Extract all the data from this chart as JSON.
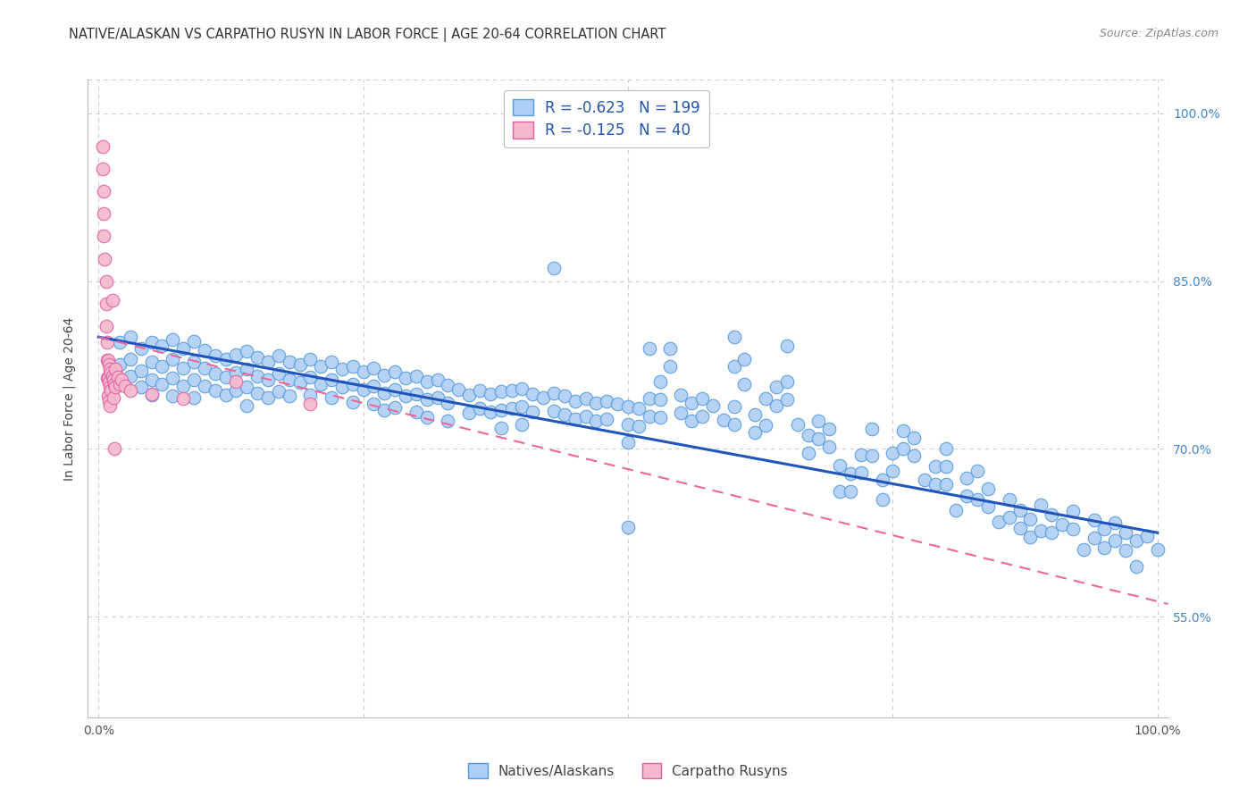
{
  "title": "NATIVE/ALASKAN VS CARPATHO RUSYN IN LABOR FORCE | AGE 20-64 CORRELATION CHART",
  "source": "Source: ZipAtlas.com",
  "ylabel": "In Labor Force | Age 20-64",
  "xlim": [
    -0.01,
    1.01
  ],
  "ylim": [
    0.46,
    1.03
  ],
  "ytick_labels_right": [
    "55.0%",
    "70.0%",
    "85.0%",
    "100.0%"
  ],
  "ytick_vals_right": [
    0.55,
    0.7,
    0.85,
    1.0
  ],
  "blue_R": "-0.623",
  "blue_N": "199",
  "pink_R": "-0.125",
  "pink_N": "40",
  "blue_color": "#aecff5",
  "blue_edge_color": "#5599dd",
  "pink_color": "#f5b8cc",
  "pink_edge_color": "#e060a0",
  "blue_line_color": "#2255bb",
  "pink_line_color": "#ee6699",
  "background_color": "#ffffff",
  "grid_color": "#cccccc",
  "blue_line_y_start": 0.8,
  "blue_line_y_end": 0.625,
  "pink_line_y_start": 0.8,
  "pink_line_y_end": 0.748,
  "pink_line_x_end": 0.22,
  "blue_scatter": [
    [
      0.02,
      0.795
    ],
    [
      0.02,
      0.775
    ],
    [
      0.03,
      0.8
    ],
    [
      0.03,
      0.78
    ],
    [
      0.03,
      0.765
    ],
    [
      0.04,
      0.79
    ],
    [
      0.04,
      0.77
    ],
    [
      0.04,
      0.755
    ],
    [
      0.05,
      0.795
    ],
    [
      0.05,
      0.778
    ],
    [
      0.05,
      0.762
    ],
    [
      0.05,
      0.748
    ],
    [
      0.06,
      0.792
    ],
    [
      0.06,
      0.774
    ],
    [
      0.06,
      0.758
    ],
    [
      0.07,
      0.798
    ],
    [
      0.07,
      0.78
    ],
    [
      0.07,
      0.763
    ],
    [
      0.07,
      0.747
    ],
    [
      0.08,
      0.79
    ],
    [
      0.08,
      0.772
    ],
    [
      0.08,
      0.756
    ],
    [
      0.09,
      0.796
    ],
    [
      0.09,
      0.778
    ],
    [
      0.09,
      0.762
    ],
    [
      0.09,
      0.746
    ],
    [
      0.1,
      0.788
    ],
    [
      0.1,
      0.772
    ],
    [
      0.1,
      0.756
    ],
    [
      0.11,
      0.783
    ],
    [
      0.11,
      0.767
    ],
    [
      0.11,
      0.752
    ],
    [
      0.12,
      0.78
    ],
    [
      0.12,
      0.764
    ],
    [
      0.12,
      0.748
    ],
    [
      0.13,
      0.784
    ],
    [
      0.13,
      0.768
    ],
    [
      0.13,
      0.752
    ],
    [
      0.14,
      0.787
    ],
    [
      0.14,
      0.771
    ],
    [
      0.14,
      0.755
    ],
    [
      0.14,
      0.739
    ],
    [
      0.15,
      0.782
    ],
    [
      0.15,
      0.765
    ],
    [
      0.15,
      0.75
    ],
    [
      0.16,
      0.778
    ],
    [
      0.16,
      0.762
    ],
    [
      0.16,
      0.746
    ],
    [
      0.17,
      0.783
    ],
    [
      0.17,
      0.767
    ],
    [
      0.17,
      0.751
    ],
    [
      0.18,
      0.778
    ],
    [
      0.18,
      0.762
    ],
    [
      0.18,
      0.747
    ],
    [
      0.19,
      0.775
    ],
    [
      0.19,
      0.759
    ],
    [
      0.2,
      0.78
    ],
    [
      0.2,
      0.764
    ],
    [
      0.2,
      0.748
    ],
    [
      0.21,
      0.774
    ],
    [
      0.21,
      0.758
    ],
    [
      0.22,
      0.778
    ],
    [
      0.22,
      0.762
    ],
    [
      0.22,
      0.746
    ],
    [
      0.23,
      0.771
    ],
    [
      0.23,
      0.755
    ],
    [
      0.24,
      0.774
    ],
    [
      0.24,
      0.758
    ],
    [
      0.24,
      0.742
    ],
    [
      0.25,
      0.769
    ],
    [
      0.25,
      0.753
    ],
    [
      0.26,
      0.772
    ],
    [
      0.26,
      0.756
    ],
    [
      0.26,
      0.74
    ],
    [
      0.27,
      0.766
    ],
    [
      0.27,
      0.75
    ],
    [
      0.27,
      0.735
    ],
    [
      0.28,
      0.769
    ],
    [
      0.28,
      0.753
    ],
    [
      0.28,
      0.737
    ],
    [
      0.29,
      0.763
    ],
    [
      0.29,
      0.747
    ],
    [
      0.3,
      0.765
    ],
    [
      0.3,
      0.749
    ],
    [
      0.3,
      0.733
    ],
    [
      0.31,
      0.76
    ],
    [
      0.31,
      0.744
    ],
    [
      0.31,
      0.728
    ],
    [
      0.32,
      0.762
    ],
    [
      0.32,
      0.746
    ],
    [
      0.33,
      0.757
    ],
    [
      0.33,
      0.741
    ],
    [
      0.33,
      0.725
    ],
    [
      0.34,
      0.753
    ],
    [
      0.35,
      0.748
    ],
    [
      0.35,
      0.732
    ],
    [
      0.36,
      0.752
    ],
    [
      0.36,
      0.736
    ],
    [
      0.37,
      0.749
    ],
    [
      0.37,
      0.733
    ],
    [
      0.38,
      0.751
    ],
    [
      0.38,
      0.735
    ],
    [
      0.38,
      0.719
    ],
    [
      0.39,
      0.752
    ],
    [
      0.39,
      0.736
    ],
    [
      0.4,
      0.754
    ],
    [
      0.4,
      0.738
    ],
    [
      0.4,
      0.722
    ],
    [
      0.41,
      0.749
    ],
    [
      0.41,
      0.733
    ],
    [
      0.42,
      0.746
    ],
    [
      0.43,
      0.862
    ],
    [
      0.43,
      0.75
    ],
    [
      0.43,
      0.734
    ],
    [
      0.44,
      0.747
    ],
    [
      0.44,
      0.731
    ],
    [
      0.45,
      0.743
    ],
    [
      0.45,
      0.727
    ],
    [
      0.46,
      0.745
    ],
    [
      0.46,
      0.729
    ],
    [
      0.47,
      0.741
    ],
    [
      0.47,
      0.725
    ],
    [
      0.48,
      0.743
    ],
    [
      0.48,
      0.727
    ],
    [
      0.49,
      0.74
    ],
    [
      0.5,
      0.738
    ],
    [
      0.5,
      0.722
    ],
    [
      0.5,
      0.706
    ],
    [
      0.5,
      0.63
    ],
    [
      0.51,
      0.736
    ],
    [
      0.51,
      0.72
    ],
    [
      0.52,
      0.79
    ],
    [
      0.52,
      0.745
    ],
    [
      0.52,
      0.729
    ],
    [
      0.53,
      0.76
    ],
    [
      0.53,
      0.744
    ],
    [
      0.53,
      0.728
    ],
    [
      0.54,
      0.79
    ],
    [
      0.54,
      0.774
    ],
    [
      0.55,
      0.748
    ],
    [
      0.55,
      0.732
    ],
    [
      0.56,
      0.741
    ],
    [
      0.56,
      0.725
    ],
    [
      0.57,
      0.745
    ],
    [
      0.57,
      0.729
    ],
    [
      0.58,
      0.739
    ],
    [
      0.59,
      0.726
    ],
    [
      0.6,
      0.8
    ],
    [
      0.6,
      0.774
    ],
    [
      0.6,
      0.738
    ],
    [
      0.6,
      0.722
    ],
    [
      0.61,
      0.78
    ],
    [
      0.61,
      0.758
    ],
    [
      0.62,
      0.731
    ],
    [
      0.62,
      0.715
    ],
    [
      0.63,
      0.745
    ],
    [
      0.63,
      0.721
    ],
    [
      0.64,
      0.755
    ],
    [
      0.64,
      0.739
    ],
    [
      0.65,
      0.792
    ],
    [
      0.65,
      0.76
    ],
    [
      0.65,
      0.744
    ],
    [
      0.66,
      0.722
    ],
    [
      0.67,
      0.712
    ],
    [
      0.67,
      0.696
    ],
    [
      0.68,
      0.725
    ],
    [
      0.68,
      0.709
    ],
    [
      0.69,
      0.718
    ],
    [
      0.69,
      0.702
    ],
    [
      0.7,
      0.685
    ],
    [
      0.7,
      0.662
    ],
    [
      0.71,
      0.678
    ],
    [
      0.71,
      0.662
    ],
    [
      0.72,
      0.695
    ],
    [
      0.72,
      0.679
    ],
    [
      0.73,
      0.718
    ],
    [
      0.73,
      0.694
    ],
    [
      0.74,
      0.672
    ],
    [
      0.74,
      0.655
    ],
    [
      0.75,
      0.696
    ],
    [
      0.75,
      0.68
    ],
    [
      0.76,
      0.716
    ],
    [
      0.76,
      0.7
    ],
    [
      0.77,
      0.71
    ],
    [
      0.77,
      0.694
    ],
    [
      0.78,
      0.672
    ],
    [
      0.79,
      0.684
    ],
    [
      0.79,
      0.668
    ],
    [
      0.8,
      0.7
    ],
    [
      0.8,
      0.684
    ],
    [
      0.8,
      0.668
    ],
    [
      0.81,
      0.645
    ],
    [
      0.82,
      0.674
    ],
    [
      0.82,
      0.658
    ],
    [
      0.83,
      0.68
    ],
    [
      0.83,
      0.655
    ],
    [
      0.84,
      0.664
    ],
    [
      0.84,
      0.648
    ],
    [
      0.85,
      0.635
    ],
    [
      0.86,
      0.655
    ],
    [
      0.86,
      0.639
    ],
    [
      0.87,
      0.645
    ],
    [
      0.87,
      0.629
    ],
    [
      0.88,
      0.637
    ],
    [
      0.88,
      0.621
    ],
    [
      0.89,
      0.65
    ],
    [
      0.89,
      0.627
    ],
    [
      0.9,
      0.641
    ],
    [
      0.9,
      0.625
    ],
    [
      0.91,
      0.632
    ],
    [
      0.92,
      0.644
    ],
    [
      0.92,
      0.628
    ],
    [
      0.93,
      0.61
    ],
    [
      0.94,
      0.636
    ],
    [
      0.94,
      0.62
    ],
    [
      0.95,
      0.628
    ],
    [
      0.95,
      0.612
    ],
    [
      0.96,
      0.634
    ],
    [
      0.96,
      0.618
    ],
    [
      0.97,
      0.625
    ],
    [
      0.97,
      0.609
    ],
    [
      0.98,
      0.618
    ],
    [
      0.98,
      0.595
    ],
    [
      0.99,
      0.622
    ],
    [
      1.0,
      0.61
    ]
  ],
  "pink_scatter": [
    [
      0.004,
      0.97
    ],
    [
      0.004,
      0.95
    ],
    [
      0.005,
      0.93
    ],
    [
      0.005,
      0.91
    ],
    [
      0.005,
      0.89
    ],
    [
      0.006,
      0.87
    ],
    [
      0.007,
      0.85
    ],
    [
      0.007,
      0.83
    ],
    [
      0.007,
      0.81
    ],
    [
      0.008,
      0.795
    ],
    [
      0.008,
      0.779
    ],
    [
      0.008,
      0.763
    ],
    [
      0.009,
      0.779
    ],
    [
      0.009,
      0.763
    ],
    [
      0.009,
      0.747
    ],
    [
      0.01,
      0.775
    ],
    [
      0.01,
      0.759
    ],
    [
      0.01,
      0.743
    ],
    [
      0.011,
      0.771
    ],
    [
      0.011,
      0.755
    ],
    [
      0.011,
      0.739
    ],
    [
      0.012,
      0.768
    ],
    [
      0.012,
      0.752
    ],
    [
      0.013,
      0.833
    ],
    [
      0.013,
      0.765
    ],
    [
      0.014,
      0.762
    ],
    [
      0.014,
      0.746
    ],
    [
      0.015,
      0.758
    ],
    [
      0.015,
      0.7
    ],
    [
      0.016,
      0.771
    ],
    [
      0.016,
      0.755
    ],
    [
      0.018,
      0.764
    ],
    [
      0.02,
      0.758
    ],
    [
      0.022,
      0.762
    ],
    [
      0.025,
      0.756
    ],
    [
      0.03,
      0.752
    ],
    [
      0.05,
      0.749
    ],
    [
      0.08,
      0.745
    ],
    [
      0.13,
      0.76
    ],
    [
      0.2,
      0.74
    ]
  ]
}
